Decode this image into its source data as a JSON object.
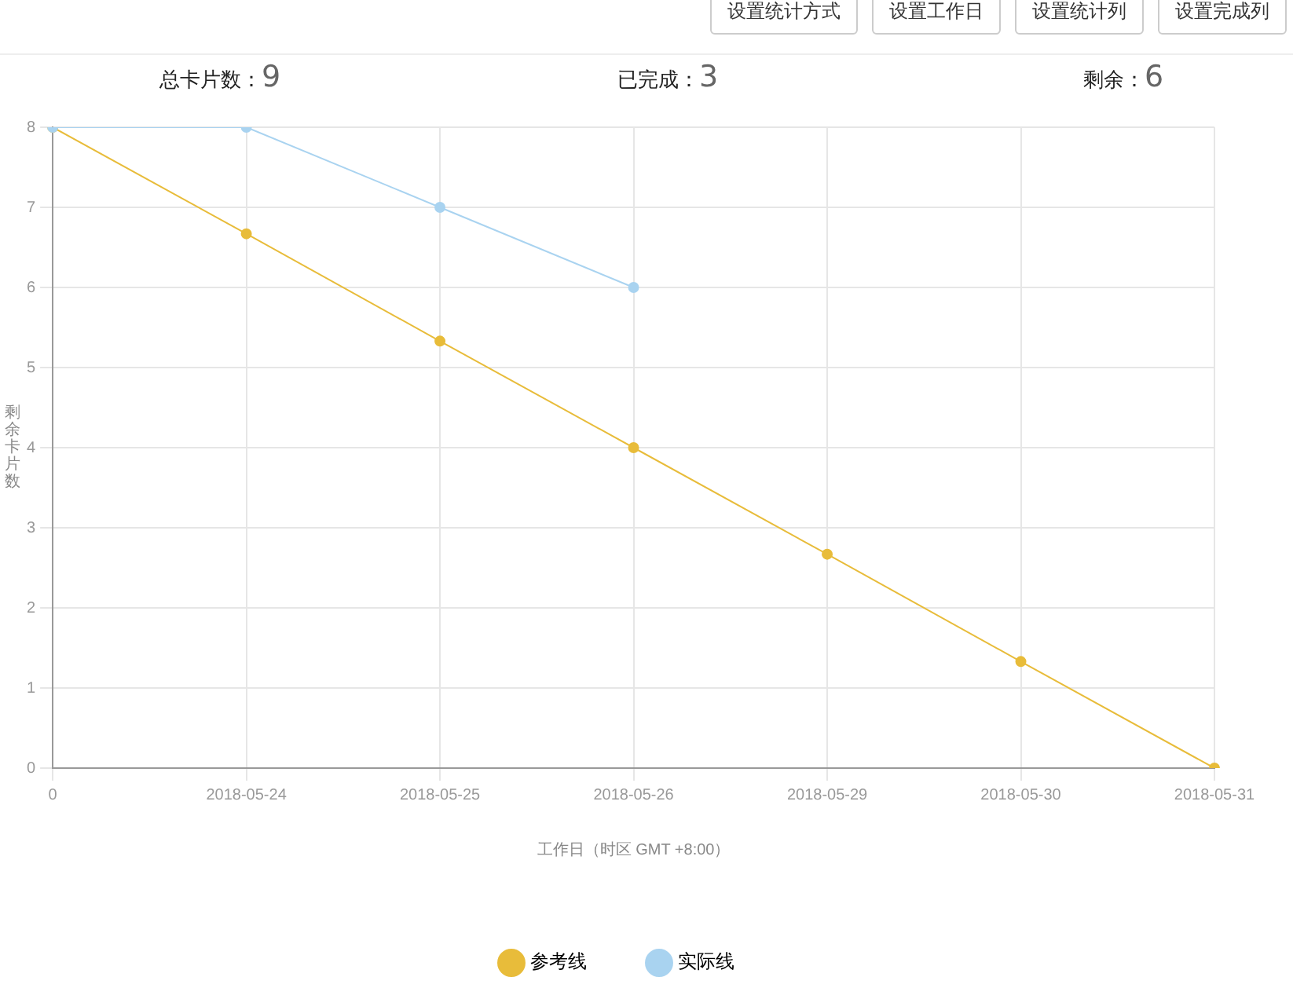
{
  "chart_data": {
    "type": "line",
    "xlabel": "工作日（时区 GMT +8:00）",
    "ylabel": "剩余卡片数",
    "annotations": [
      "设置统计方式",
      "设置工作日",
      "设置统计列",
      "设置完成列",
      "总卡片数：9",
      "已完成：3",
      "剩余：6"
    ],
    "categories": [
      "0",
      "2018-05-24",
      "2018-05-25",
      "2018-05-26",
      "2018-05-29",
      "2018-05-30",
      "2018-05-31"
    ],
    "series": [
      {
        "name": "参考线",
        "color": "#e8bc3a",
        "values": [
          8,
          6.67,
          5.33,
          4,
          2.67,
          1.33,
          0
        ]
      },
      {
        "name": "实际线",
        "color": "#a9d3f0",
        "values": [
          8,
          8,
          7,
          6,
          null,
          null,
          null
        ]
      }
    ],
    "ylim": [
      0,
      8
    ],
    "yticks": [
      0,
      1,
      2,
      3,
      4,
      5,
      6,
      7,
      8
    ],
    "grid": true,
    "legend": "bottom",
    "marker": "circle",
    "line_style": "solid"
  }
}
